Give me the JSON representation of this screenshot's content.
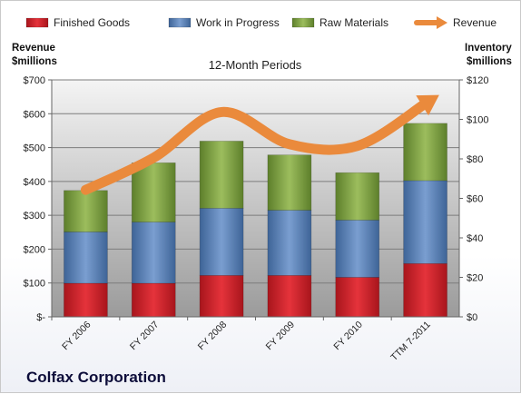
{
  "chart_data": {
    "type": "bar",
    "title": "12-Month Periods",
    "categories": [
      "FY 2006",
      "FY 2007",
      "FY 2008",
      "FY 2009",
      "FY 2010",
      "TTM 7-2011"
    ],
    "stacked": true,
    "series": [
      {
        "name": "Finished Goods",
        "axis": "right",
        "color": "#d8202a",
        "values": [
          17,
          17,
          21,
          21,
          20,
          27
        ]
      },
      {
        "name": "Work in Progress",
        "axis": "right",
        "color": "#5b84bd",
        "values": [
          26,
          31,
          34,
          33,
          29,
          42
        ]
      },
      {
        "name": "Raw Materials",
        "axis": "right",
        "color": "#7ea343",
        "values": [
          21,
          30,
          34,
          28,
          24,
          29
        ]
      },
      {
        "name": "Revenue",
        "axis": "left",
        "type": "line",
        "color": "#ea8a3c",
        "values": [
          375,
          470,
          605,
          510,
          505,
          630
        ]
      }
    ],
    "left_axis": {
      "label_line1": "Revenue",
      "label_line2": "$millions",
      "ylim": [
        0,
        700
      ],
      "ticks": [
        0,
        100,
        200,
        300,
        400,
        500,
        600,
        700
      ],
      "tick_labels": [
        "$-",
        "$100",
        "$200",
        "$300",
        "$400",
        "$500",
        "$600",
        "$700"
      ]
    },
    "right_axis": {
      "label_line1": "Inventory",
      "label_line2": "$millions",
      "ylim": [
        0,
        120
      ],
      "ticks": [
        0,
        20,
        40,
        60,
        80,
        100,
        120
      ],
      "tick_labels": [
        "$0",
        "$20",
        "$40",
        "$60",
        "$80",
        "$100",
        "$120"
      ]
    },
    "grid": true,
    "legend_position": "top"
  },
  "footer": {
    "company": "Colfax Corporation"
  }
}
